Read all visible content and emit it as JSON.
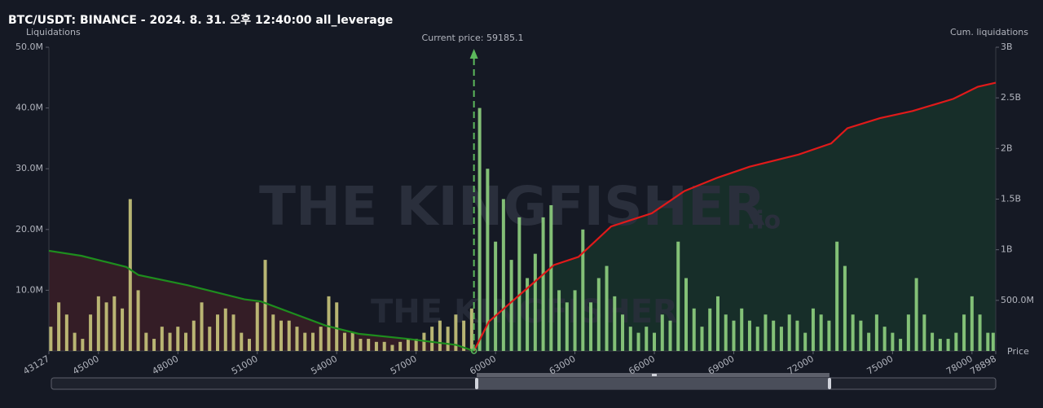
{
  "chart_data": {
    "type": "bar",
    "title": "BTC/USDT: BINANCE - 2024. 8. 31. 오후 12:40:00 all_leverage",
    "y_label": "Liquidations",
    "y2_label": "Cum. liquidations",
    "x_label": "Price",
    "annotation": "Current price:",
    "current_price": 59185.1,
    "current_price_color": "#5cb85c",
    "watermark": "THE KINGFISHER",
    "watermark_suffix": ".io",
    "color_below": "#c9c77c",
    "color_above": "#8fd27f",
    "x": [
      43200,
      43500,
      43800,
      44100,
      44400,
      44700,
      45000,
      45300,
      45600,
      45900,
      46200,
      46500,
      46800,
      47100,
      47400,
      47700,
      48000,
      48300,
      48600,
      48900,
      49200,
      49500,
      49800,
      50100,
      50400,
      50700,
      51000,
      51300,
      51600,
      51900,
      52200,
      52500,
      52800,
      53100,
      53400,
      53700,
      54000,
      54300,
      54600,
      54900,
      55200,
      55500,
      55800,
      56100,
      56400,
      56700,
      57000,
      57300,
      57600,
      57900,
      58200,
      58500,
      58800,
      59100,
      59400,
      59700,
      60000,
      60300,
      60600,
      60900,
      61200,
      61500,
      61800,
      62100,
      62400,
      62700,
      63000,
      63300,
      63600,
      63900,
      64200,
      64500,
      64800,
      65100,
      65400,
      65700,
      66000,
      66300,
      66600,
      66900,
      67200,
      67500,
      67800,
      68100,
      68400,
      68700,
      69000,
      69300,
      69600,
      69900,
      70200,
      70500,
      70800,
      71100,
      71400,
      71700,
      72000,
      72300,
      72600,
      72900,
      73200,
      73500,
      73800,
      74100,
      74400,
      74700,
      75000,
      75300,
      75600,
      75900,
      76200,
      76500,
      76800,
      77100,
      77400,
      77700,
      78000,
      78300,
      78600,
      78800
    ],
    "values": [
      4000000,
      8000000,
      6000000,
      3000000,
      2000000,
      6000000,
      9000000,
      8000000,
      9000000,
      7000000,
      25000000,
      10000000,
      3000000,
      2000000,
      4000000,
      3000000,
      4000000,
      3000000,
      5000000,
      8000000,
      4000000,
      6000000,
      7000000,
      6000000,
      3000000,
      2000000,
      8000000,
      15000000,
      6000000,
      5000000,
      5000000,
      4000000,
      3000000,
      3000000,
      4000000,
      9000000,
      8000000,
      3000000,
      3000000,
      2000000,
      2000000,
      1500000,
      1500000,
      1000000,
      1500000,
      2000000,
      2000000,
      3000000,
      4000000,
      5000000,
      4000000,
      6000000,
      5000000,
      7000000,
      40000000,
      30000000,
      18000000,
      25000000,
      15000000,
      22000000,
      12000000,
      16000000,
      22000000,
      24000000,
      10000000,
      8000000,
      10000000,
      20000000,
      8000000,
      12000000,
      14000000,
      9000000,
      6000000,
      4000000,
      3000000,
      4000000,
      3000000,
      6000000,
      5000000,
      18000000,
      12000000,
      7000000,
      4000000,
      7000000,
      9000000,
      6000000,
      5000000,
      7000000,
      5000000,
      4000000,
      6000000,
      5000000,
      4000000,
      6000000,
      5000000,
      3000000,
      7000000,
      6000000,
      5000000,
      18000000,
      14000000,
      6000000,
      5000000,
      3000000,
      6000000,
      4000000,
      3000000,
      2000000,
      6000000,
      12000000,
      6000000,
      3000000,
      2000000,
      2000000,
      3000000,
      6000000,
      9000000,
      6000000,
      3000000,
      3000000
    ],
    "xlim": [
      43127,
      78898
    ],
    "xticks": [
      43127,
      45000,
      48000,
      51000,
      54000,
      57000,
      60000,
      63000,
      66000,
      69000,
      72000,
      75000,
      78000,
      78898
    ],
    "ylim": [
      0,
      50000000
    ],
    "yticks": [
      {
        "value": 10000000,
        "label": "10.0M"
      },
      {
        "value": 20000000,
        "label": "20.0M"
      },
      {
        "value": 30000000,
        "label": "30.0M"
      },
      {
        "value": 40000000,
        "label": "40.0M"
      },
      {
        "value": 50000000,
        "label": "50.0M"
      }
    ],
    "y2lim": [
      0,
      3000000000
    ],
    "y2ticks": [
      {
        "value": 500000000,
        "label": "500.0M"
      },
      {
        "value": 1000000000,
        "label": "1B"
      },
      {
        "value": 1500000000,
        "label": "1.5B"
      },
      {
        "value": 2000000000,
        "label": "2B"
      },
      {
        "value": 2500000000,
        "label": "2.5B"
      },
      {
        "value": 3000000000,
        "label": "3B"
      }
    ],
    "series": [
      {
        "axis": "y2",
        "color": "#1e8e1e",
        "fill": "#3a1e27",
        "x": [
          43127,
          44358,
          45282,
          46051,
          46513,
          48360,
          50515,
          51130,
          52362,
          53593,
          54824,
          56671,
          58518,
          59185
        ],
        "values": [
          990000000,
          940000000,
          880000000,
          830000000,
          750000000,
          650000000,
          510000000,
          490000000,
          370000000,
          250000000,
          170000000,
          120000000,
          60000000,
          0
        ]
      },
      {
        "axis": "y2",
        "color": "#e01a1a",
        "fill": "#18332a",
        "x": [
          59185,
          59749,
          60981,
          62212,
          63136,
          64367,
          65906,
          67137,
          68369,
          69600,
          71447,
          72679,
          73294,
          74526,
          75757,
          77296,
          78220,
          78898
        ],
        "values": [
          0,
          290000000,
          570000000,
          850000000,
          930000000,
          1230000000,
          1360000000,
          1580000000,
          1710000000,
          1820000000,
          1940000000,
          2050000000,
          2200000000,
          2300000000,
          2370000000,
          2490000000,
          2610000000,
          2650000000
        ]
      }
    ]
  }
}
